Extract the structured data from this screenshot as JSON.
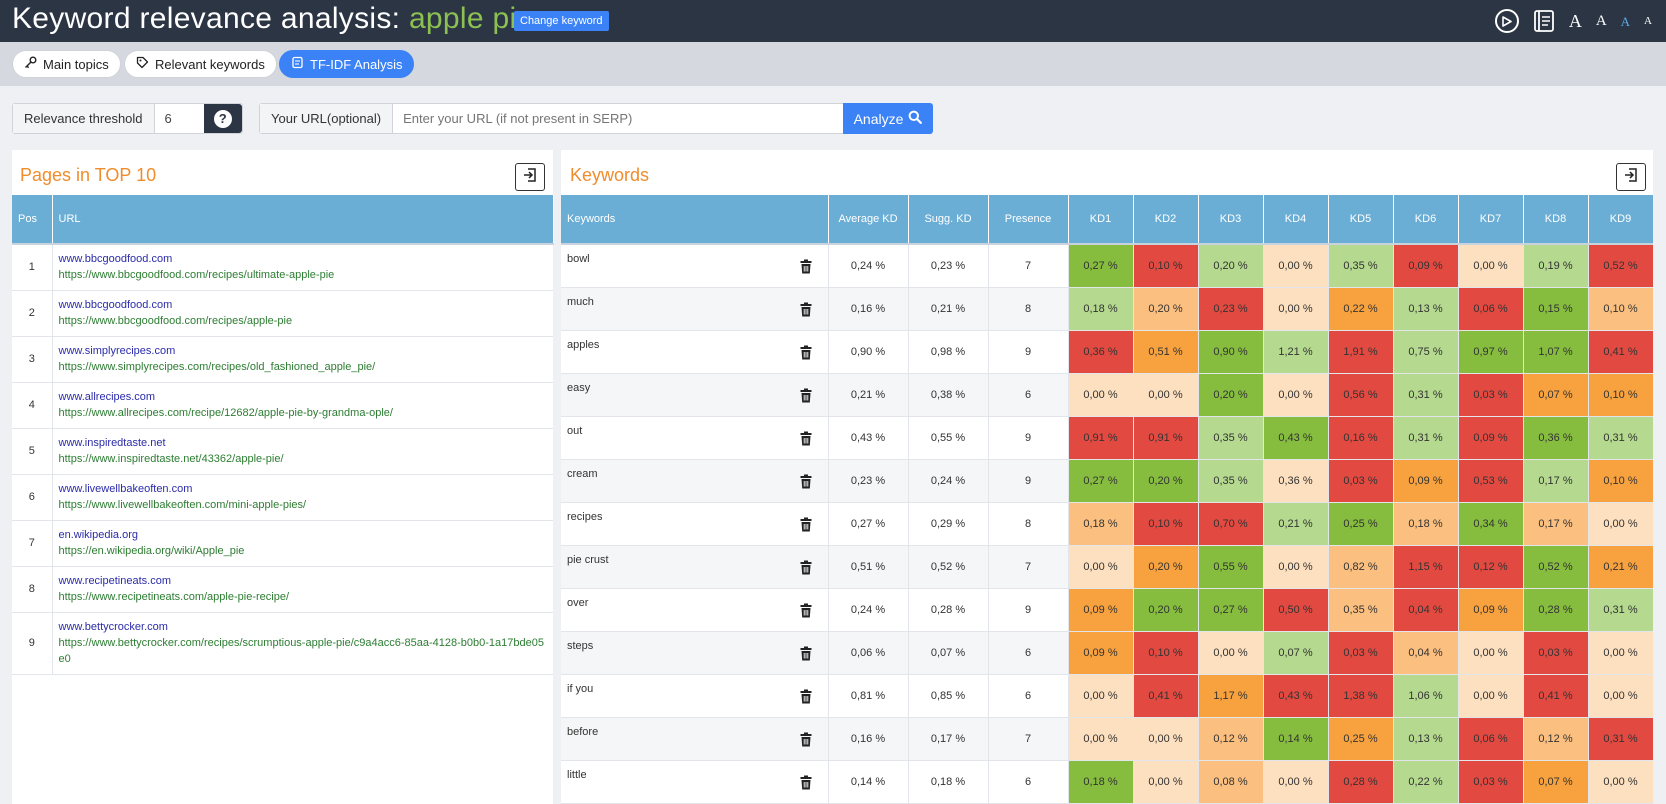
{
  "header": {
    "title_prefix": "Keyword relevance analysis:",
    "keyword": "apple pie",
    "change_button": "Change keyword",
    "font_sizes": [
      "A",
      "A",
      "A",
      "A"
    ]
  },
  "nav": {
    "tabs": [
      {
        "label": "Main topics",
        "icon": "key-icon",
        "active": false
      },
      {
        "label": "Relevant keywords",
        "icon": "tag-icon",
        "active": false
      },
      {
        "label": "TF-IDF Analysis",
        "icon": "document-icon",
        "active": true
      }
    ]
  },
  "controls": {
    "threshold_label": "Relevance threshold",
    "threshold_value": "6",
    "url_label": "Your URL(optional)",
    "url_placeholder": "Enter your URL (if not present in SERP)",
    "analyze_label": "Analyze"
  },
  "pages": {
    "title": "Pages in TOP 10",
    "columns": [
      "Pos",
      "URL"
    ],
    "rows": [
      {
        "pos": "1",
        "domain": "www.bbcgoodfood.com",
        "url": "https://www.bbcgoodfood.com/recipes/ultimate-apple-pie"
      },
      {
        "pos": "2",
        "domain": "www.bbcgoodfood.com",
        "url": "https://www.bbcgoodfood.com/recipes/apple-pie"
      },
      {
        "pos": "3",
        "domain": "www.simplyrecipes.com",
        "url": "https://www.simplyrecipes.com/recipes/old_fashioned_apple_pie/"
      },
      {
        "pos": "4",
        "domain": "www.allrecipes.com",
        "url": "https://www.allrecipes.com/recipe/12682/apple-pie-by-grandma-ople/"
      },
      {
        "pos": "5",
        "domain": "www.inspiredtaste.net",
        "url": "https://www.inspiredtaste.net/43362/apple-pie/"
      },
      {
        "pos": "6",
        "domain": "www.livewellbakeoften.com",
        "url": "https://www.livewellbakeoften.com/mini-apple-pies/"
      },
      {
        "pos": "7",
        "domain": "en.wikipedia.org",
        "url": "https://en.wikipedia.org/wiki/Apple_pie"
      },
      {
        "pos": "8",
        "domain": "www.recipetineats.com",
        "url": "https://www.recipetineats.com/apple-pie-recipe/"
      },
      {
        "pos": "9",
        "domain": "www.bettycrocker.com",
        "url": "https://www.bettycrocker.com/recipes/scrumptious-apple-pie/c9a4acc6-85aa-4128-b0b0-1a17bde05e0"
      }
    ]
  },
  "keywords": {
    "title": "Keywords",
    "columns": [
      "Keywords",
      "Average KD",
      "Sugg. KD",
      "Presence",
      "KD1",
      "KD2",
      "KD3",
      "KD4",
      "KD5",
      "KD6",
      "KD7",
      "KD8",
      "KD9"
    ],
    "colors": {
      "dg": "#86bd3e",
      "lg": "#b4d98f",
      "pe": "#fde0bf",
      "lo": "#fbbf80",
      "or": "#f7a23e",
      "rd": "#e24a41"
    },
    "rows": [
      {
        "keyword": "bowl",
        "avg": "0,24 %",
        "sugg": "0,23 %",
        "presence": "7",
        "kd": [
          "0,27 %",
          "0,10 %",
          "0,20 %",
          "0,00 %",
          "0,35 %",
          "0,09 %",
          "0,00 %",
          "0,19 %",
          "0,52 %"
        ],
        "c": [
          "dg",
          "rd",
          "lg",
          "pe",
          "lg",
          "rd",
          "pe",
          "lg",
          "rd"
        ]
      },
      {
        "keyword": "much",
        "avg": "0,16 %",
        "sugg": "0,21 %",
        "presence": "8",
        "kd": [
          "0,18 %",
          "0,20 %",
          "0,23 %",
          "0,00 %",
          "0,22 %",
          "0,13 %",
          "0,06 %",
          "0,15 %",
          "0,10 %"
        ],
        "c": [
          "lg",
          "lo",
          "rd",
          "pe",
          "or",
          "lg",
          "rd",
          "dg",
          "lo"
        ]
      },
      {
        "keyword": "apples",
        "avg": "0,90 %",
        "sugg": "0,98 %",
        "presence": "9",
        "kd": [
          "0,36 %",
          "0,51 %",
          "0,90 %",
          "1,21 %",
          "1,91 %",
          "0,75 %",
          "0,97 %",
          "1,07 %",
          "0,41 %"
        ],
        "c": [
          "rd",
          "or",
          "dg",
          "lg",
          "rd",
          "lg",
          "dg",
          "dg",
          "rd"
        ]
      },
      {
        "keyword": "easy",
        "avg": "0,21 %",
        "sugg": "0,38 %",
        "presence": "6",
        "kd": [
          "0,00 %",
          "0,00 %",
          "0,20 %",
          "0,00 %",
          "0,56 %",
          "0,31 %",
          "0,03 %",
          "0,07 %",
          "0,10 %"
        ],
        "c": [
          "pe",
          "pe",
          "dg",
          "pe",
          "rd",
          "lg",
          "rd",
          "or",
          "or"
        ]
      },
      {
        "keyword": "out",
        "avg": "0,43 %",
        "sugg": "0,55 %",
        "presence": "9",
        "kd": [
          "0,91 %",
          "0,91 %",
          "0,35 %",
          "0,43 %",
          "0,16 %",
          "0,31 %",
          "0,09 %",
          "0,36 %",
          "0,31 %"
        ],
        "c": [
          "rd",
          "rd",
          "lg",
          "dg",
          "rd",
          "lg",
          "rd",
          "dg",
          "lg"
        ]
      },
      {
        "keyword": "cream",
        "avg": "0,23 %",
        "sugg": "0,24 %",
        "presence": "9",
        "kd": [
          "0,27 %",
          "0,20 %",
          "0,35 %",
          "0,36 %",
          "0,03 %",
          "0,09 %",
          "0,53 %",
          "0,17 %",
          "0,10 %"
        ],
        "c": [
          "dg",
          "dg",
          "lg",
          "pe",
          "rd",
          "or",
          "rd",
          "lg",
          "or"
        ]
      },
      {
        "keyword": "recipes",
        "avg": "0,27 %",
        "sugg": "0,29 %",
        "presence": "8",
        "kd": [
          "0,18 %",
          "0,10 %",
          "0,70 %",
          "0,21 %",
          "0,25 %",
          "0,18 %",
          "0,34 %",
          "0,17 %",
          "0,00 %"
        ],
        "c": [
          "lo",
          "rd",
          "rd",
          "lg",
          "dg",
          "lo",
          "dg",
          "lo",
          "pe"
        ]
      },
      {
        "keyword": "pie crust",
        "avg": "0,51 %",
        "sugg": "0,52 %",
        "presence": "7",
        "kd": [
          "0,00 %",
          "0,20 %",
          "0,55 %",
          "0,00 %",
          "0,82 %",
          "1,15 %",
          "0,12 %",
          "0,52 %",
          "0,21 %"
        ],
        "c": [
          "pe",
          "or",
          "dg",
          "pe",
          "lo",
          "rd",
          "rd",
          "dg",
          "or"
        ]
      },
      {
        "keyword": "over",
        "avg": "0,24 %",
        "sugg": "0,28 %",
        "presence": "9",
        "kd": [
          "0,09 %",
          "0,20 %",
          "0,27 %",
          "0,50 %",
          "0,35 %",
          "0,04 %",
          "0,09 %",
          "0,28 %",
          "0,31 %"
        ],
        "c": [
          "or",
          "dg",
          "dg",
          "rd",
          "lo",
          "rd",
          "or",
          "dg",
          "lg"
        ]
      },
      {
        "keyword": "steps",
        "avg": "0,06 %",
        "sugg": "0,07 %",
        "presence": "6",
        "kd": [
          "0,09 %",
          "0,10 %",
          "0,00 %",
          "0,07 %",
          "0,03 %",
          "0,04 %",
          "0,00 %",
          "0,03 %",
          "0,00 %"
        ],
        "c": [
          "or",
          "rd",
          "pe",
          "lg",
          "rd",
          "lo",
          "pe",
          "rd",
          "pe"
        ]
      },
      {
        "keyword": "if you",
        "avg": "0,81 %",
        "sugg": "0,85 %",
        "presence": "6",
        "kd": [
          "0,00 %",
          "0,41 %",
          "1,17 %",
          "0,43 %",
          "1,38 %",
          "1,06 %",
          "0,00 %",
          "0,41 %",
          "0,00 %"
        ],
        "c": [
          "pe",
          "rd",
          "or",
          "rd",
          "rd",
          "lg",
          "pe",
          "rd",
          "pe"
        ]
      },
      {
        "keyword": "before",
        "avg": "0,16 %",
        "sugg": "0,17 %",
        "presence": "7",
        "kd": [
          "0,00 %",
          "0,00 %",
          "0,12 %",
          "0,14 %",
          "0,25 %",
          "0,13 %",
          "0,06 %",
          "0,12 %",
          "0,31 %"
        ],
        "c": [
          "pe",
          "pe",
          "lo",
          "dg",
          "or",
          "lg",
          "rd",
          "lo",
          "rd"
        ]
      },
      {
        "keyword": "little",
        "avg": "0,14 %",
        "sugg": "0,18 %",
        "presence": "6",
        "kd": [
          "0,18 %",
          "0,00 %",
          "0,08 %",
          "0,00 %",
          "0,28 %",
          "0,22 %",
          "0,03 %",
          "0,07 %",
          "0,00 %"
        ],
        "c": [
          "dg",
          "pe",
          "lo",
          "pe",
          "rd",
          "lg",
          "rd",
          "or",
          "pe"
        ]
      }
    ]
  }
}
